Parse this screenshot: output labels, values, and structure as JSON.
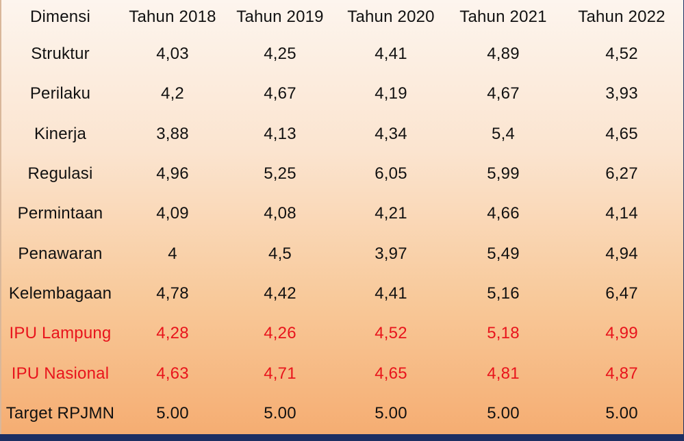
{
  "table": {
    "headers": [
      "Dimensi",
      "Tahun 2018",
      "Tahun 2019",
      "Tahun 2020",
      "Tahun 2021",
      "Tahun 2022"
    ],
    "rows": [
      {
        "label": "Struktur",
        "values": [
          "4,03",
          "4,25",
          "4,41",
          "4,89",
          "4,52"
        ]
      },
      {
        "label": "Perilaku",
        "values": [
          "4,2",
          "4,67",
          "4,19",
          "4,67",
          "3,93"
        ]
      },
      {
        "label": "Kinerja",
        "values": [
          "3,88",
          "4,13",
          "4,34",
          "5,4",
          "4,65"
        ]
      },
      {
        "label": "Regulasi",
        "values": [
          "4,96",
          "5,25",
          "6,05",
          "5,99",
          "6,27"
        ]
      },
      {
        "label": "Permintaan",
        "values": [
          "4,09",
          "4,08",
          "4,21",
          "4,66",
          "4,14"
        ]
      },
      {
        "label": "Penawaran",
        "values": [
          "4",
          "4,5",
          "3,97",
          "5,49",
          "4,94"
        ]
      },
      {
        "label": "Kelembagaan",
        "values": [
          "4,78",
          "4,42",
          "4,41",
          "5,16",
          "6,47"
        ]
      },
      {
        "label": "IPU Lampung",
        "values": [
          "4,28",
          "4,26",
          "4,52",
          "5,18",
          "4,99"
        ]
      },
      {
        "label": "IPU Nasional",
        "values": [
          "4,63",
          "4,71",
          "4,65",
          "4,81",
          "4,87"
        ]
      },
      {
        "label": "Target RPJMN",
        "values": [
          "5.00",
          "5.00",
          "5.00",
          "5.00",
          "5.00"
        ]
      }
    ]
  },
  "colors": {
    "highlight_text": "#e8141c",
    "normal_text": "#111111",
    "frame": "#1d2f63"
  }
}
